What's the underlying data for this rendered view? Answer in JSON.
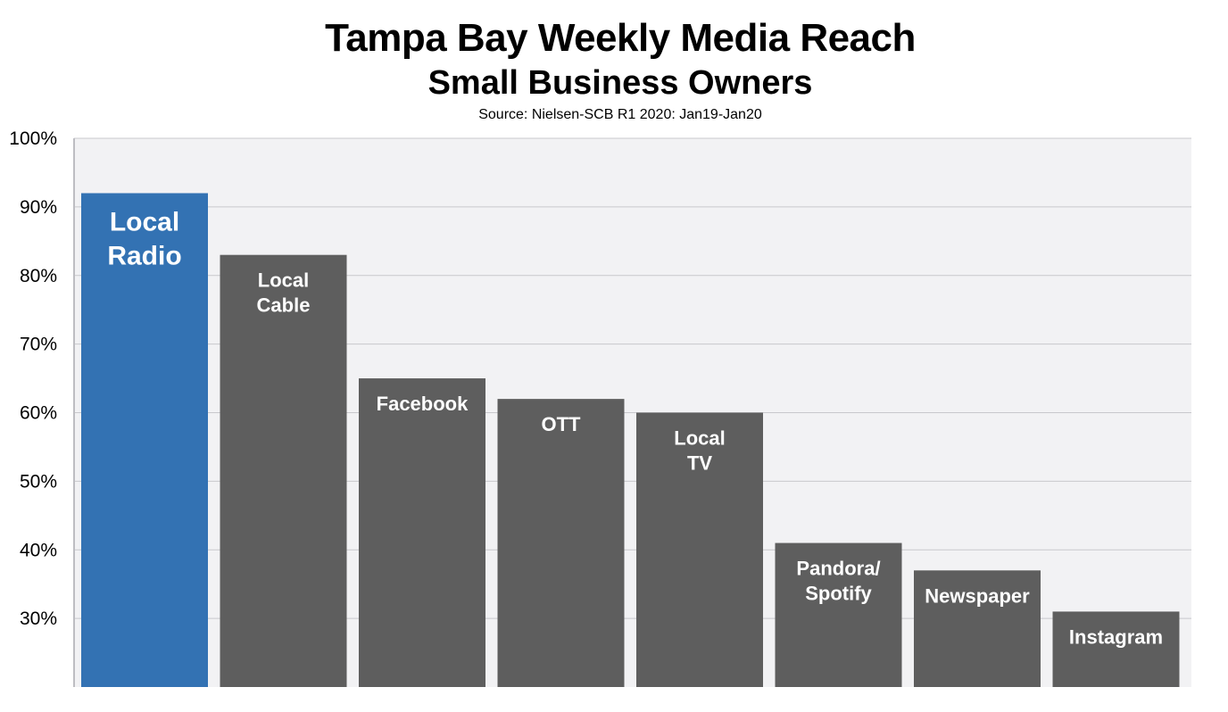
{
  "chart_data": {
    "type": "bar",
    "title": "Tampa Bay Weekly Media Reach",
    "subtitle": "Small Business Owners",
    "source": "Source: Nielsen-SCB R1 2020: Jan19-Jan20",
    "categories": [
      "Local Radio",
      "Local Cable",
      "Facebook",
      "OTT",
      "Local TV",
      "Pandora/ Spotify",
      "Newspaper",
      "Instagram"
    ],
    "label_lines": [
      [
        "Local",
        "Radio"
      ],
      [
        "Local",
        "Cable"
      ],
      [
        "Facebook"
      ],
      [
        "OTT"
      ],
      [
        "Local",
        "TV"
      ],
      [
        "Pandora/",
        "Spotify"
      ],
      [
        "Newspaper"
      ],
      [
        "Instagram"
      ]
    ],
    "values": [
      92,
      83,
      65,
      62,
      60,
      41,
      37,
      31
    ],
    "y_ticks": [
      "30%",
      "40%",
      "50%",
      "60%",
      "70%",
      "80%",
      "90%",
      "100%"
    ],
    "ylim": [
      20,
      100
    ],
    "grid": true,
    "colors": {
      "highlight": "#3372B3",
      "bar": "#5E5E5E",
      "plot_bg": "#F2F2F4",
      "grid": "#C8C8CC"
    }
  }
}
